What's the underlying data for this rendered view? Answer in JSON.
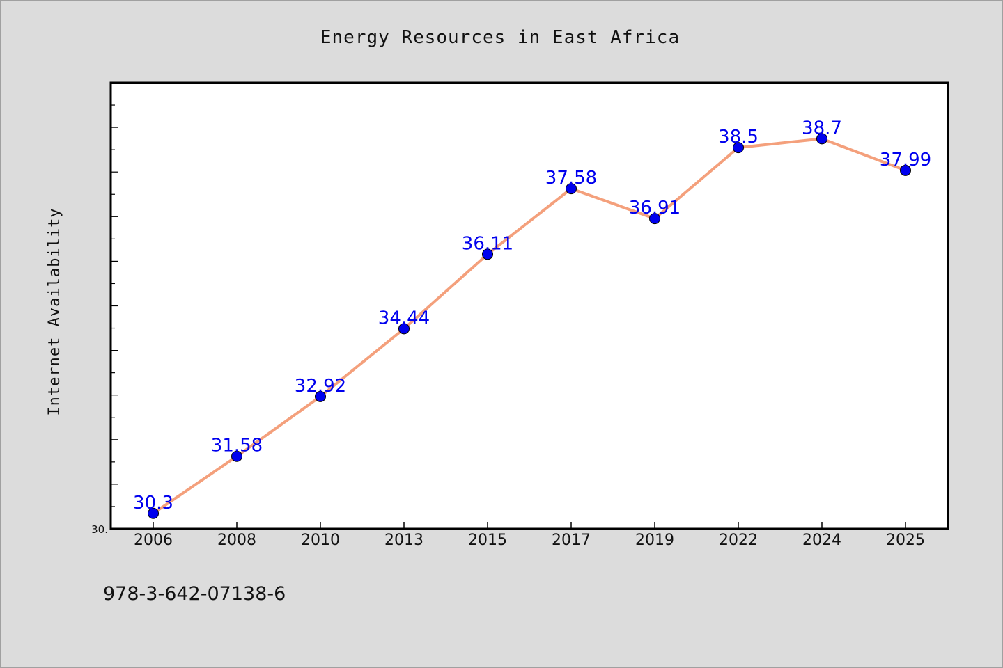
{
  "footer_text": "978-3-642-07138-6",
  "chart_data": {
    "type": "line",
    "title": "Energy Resources in East Africa",
    "xlabel": "",
    "ylabel": "Internet Availability",
    "categories": [
      "2006",
      "2008",
      "2010",
      "2013",
      "2015",
      "2017",
      "2019",
      "2022",
      "2024",
      "2025"
    ],
    "series": [
      {
        "values": [
          30.3,
          31.58,
          32.92,
          34.44,
          36.11,
          37.58,
          36.91,
          38.5,
          38.7,
          37.99
        ],
        "labels": [
          "30.3",
          "31.58",
          "32.92",
          "34.44",
          "36.11",
          "37.58",
          "36.91",
          "38.5",
          "38.7",
          "37.99"
        ]
      }
    ],
    "ylim": [
      30.0,
      40.0
    ],
    "y_tick_label_shown": "30.",
    "grid": false,
    "legend": "none",
    "colors": {
      "line": "#f4a07c",
      "marker": "#0000ee",
      "data_label": "#0000ee",
      "plot_background": "#ffffff",
      "figure_background": "#dcdcdc"
    }
  }
}
